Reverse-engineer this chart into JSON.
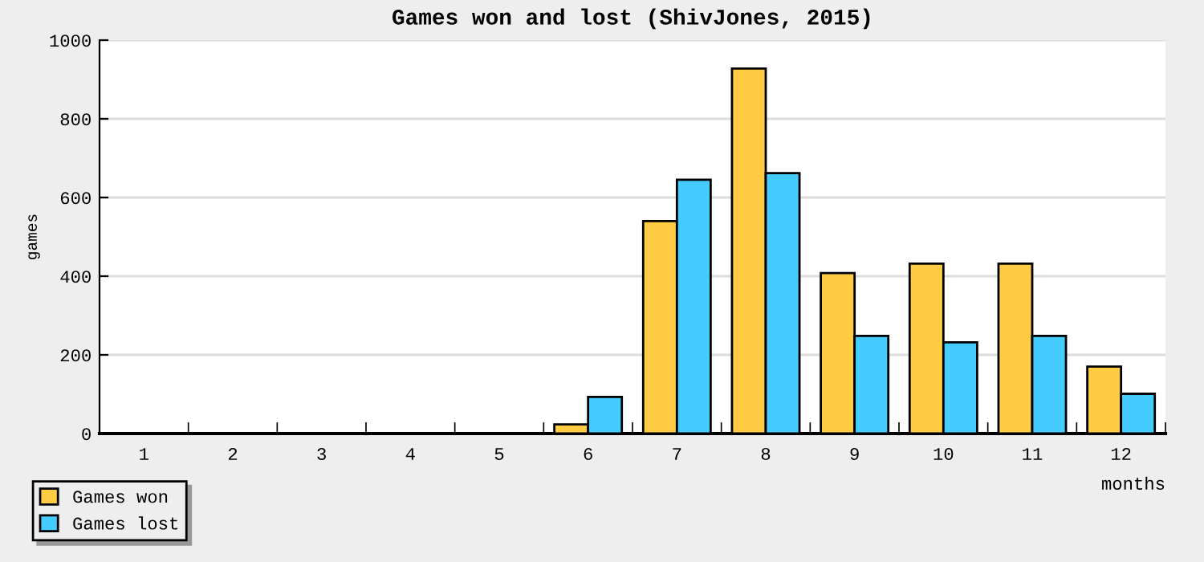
{
  "chart_data": {
    "type": "bar",
    "title": "Games won and lost (ShivJones, 2015)",
    "xlabel": "months",
    "ylabel": "games",
    "categories": [
      "1",
      "2",
      "3",
      "4",
      "5",
      "6",
      "7",
      "8",
      "9",
      "10",
      "11",
      "12"
    ],
    "series": [
      {
        "name": "Games won",
        "color": "#ffcc44",
        "values": [
          null,
          null,
          null,
          null,
          null,
          23,
          540,
          928,
          408,
          432,
          432,
          170
        ]
      },
      {
        "name": "Games lost",
        "color": "#44ccff",
        "values": [
          null,
          null,
          null,
          null,
          null,
          93,
          645,
          662,
          248,
          232,
          248,
          101
        ]
      }
    ],
    "ylim": [
      0,
      1000
    ],
    "yticks": [
      0,
      200,
      400,
      600,
      800,
      1000
    ],
    "grid": "y",
    "legend": "bottom left"
  }
}
